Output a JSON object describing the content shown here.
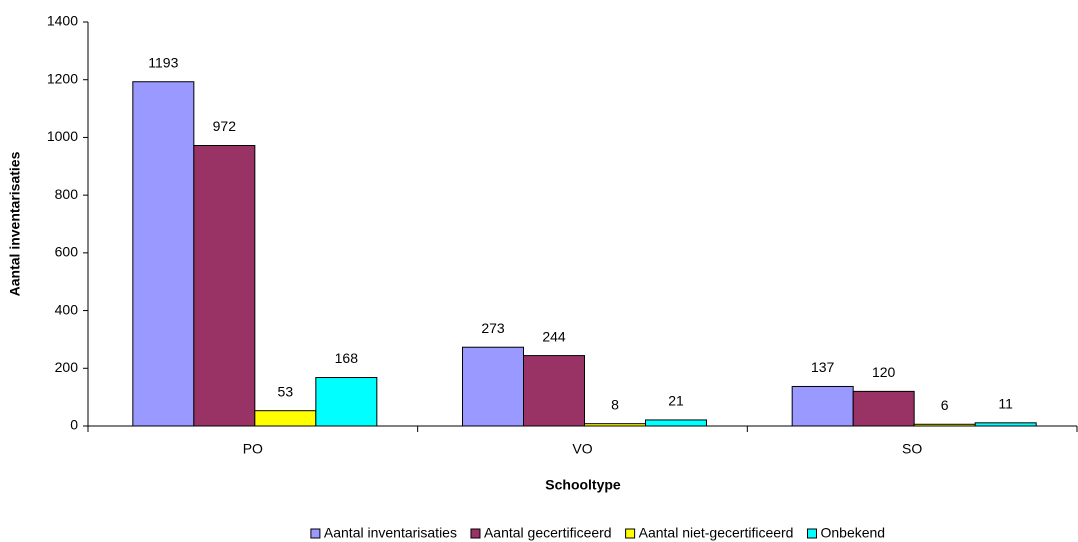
{
  "chart_data": {
    "type": "bar",
    "xlabel": "Schooltype",
    "ylabel": "Aantal inventarisaties",
    "categories": [
      "PO",
      "VO",
      "SO"
    ],
    "series": [
      {
        "name": "Aantal inventarisaties",
        "color": "#9999ff",
        "values": [
          1193,
          273,
          137
        ]
      },
      {
        "name": "Aantal gecertificeerd",
        "color": "#993366",
        "values": [
          972,
          244,
          120
        ]
      },
      {
        "name": "Aantal niet-gecertificeerd",
        "color": "#ffff00",
        "values": [
          53,
          8,
          6
        ]
      },
      {
        "name": "Onbekend",
        "color": "#00ffff",
        "values": [
          168,
          21,
          11
        ]
      }
    ],
    "ylim": [
      0,
      1400
    ],
    "yticks": [
      0,
      200,
      400,
      600,
      800,
      1000,
      1200,
      1400
    ],
    "grid": false,
    "legend": "bottom"
  }
}
